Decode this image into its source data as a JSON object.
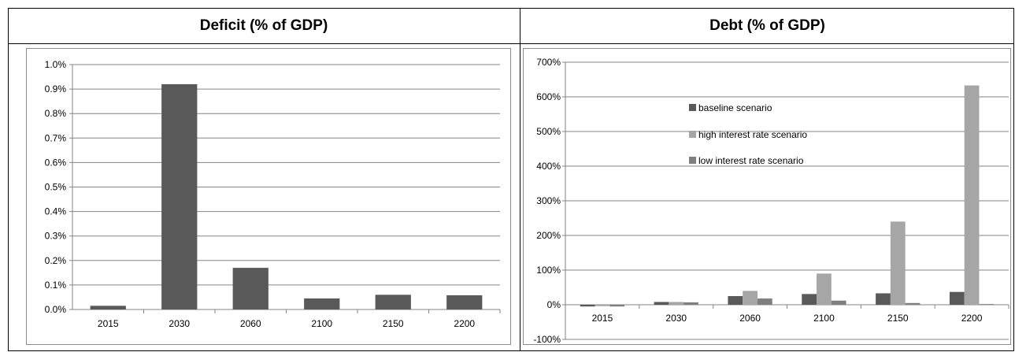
{
  "titles": {
    "deficit": "Deficit  (% of GDP)",
    "debt": "Debt (% of GDP)"
  },
  "colors": {
    "baseline": "#595959",
    "high": "#a6a6a6",
    "low": "#7f7f7f",
    "gridline": "#868686",
    "axis_text": "#000000"
  },
  "chart_data": [
    {
      "type": "bar",
      "title": "Deficit  (% of GDP)",
      "categories": [
        "2015",
        "2030",
        "2060",
        "2100",
        "2150",
        "2200"
      ],
      "values": [
        0.015,
        0.92,
        0.17,
        0.045,
        0.06,
        0.058
      ],
      "ylim": [
        0,
        1.0
      ],
      "yticks": [
        0,
        0.1,
        0.2,
        0.3,
        0.4,
        0.5,
        0.6,
        0.7,
        0.8,
        0.9,
        1.0
      ],
      "ytick_labels": [
        "0.0%",
        "0.1%",
        "0.2%",
        "0.3%",
        "0.4%",
        "0.5%",
        "0.6%",
        "0.7%",
        "0.8%",
        "0.9%",
        "1.0%"
      ],
      "grid": true,
      "legend": "none"
    },
    {
      "type": "bar",
      "title": "Debt (% of GDP)",
      "categories": [
        "2015",
        "2030",
        "2060",
        "2100",
        "2150",
        "2200"
      ],
      "series": [
        {
          "name": "baseline scenario",
          "values": [
            -5,
            8,
            25,
            31,
            33,
            37
          ]
        },
        {
          "name": "high interest rate scenario",
          "values": [
            -4,
            8,
            40,
            90,
            240,
            633
          ]
        },
        {
          "name": "low interest rate scenario",
          "values": [
            -5,
            7,
            18,
            12,
            5,
            2
          ]
        }
      ],
      "ylim": [
        -100,
        700
      ],
      "yticks": [
        -100,
        0,
        100,
        200,
        300,
        400,
        500,
        600,
        700
      ],
      "ytick_labels": [
        "-100%",
        "0%",
        "100%",
        "200%",
        "300%",
        "400%",
        "500%",
        "600%",
        "700%"
      ],
      "grid": true,
      "legend": "upper-left inside plot"
    }
  ]
}
